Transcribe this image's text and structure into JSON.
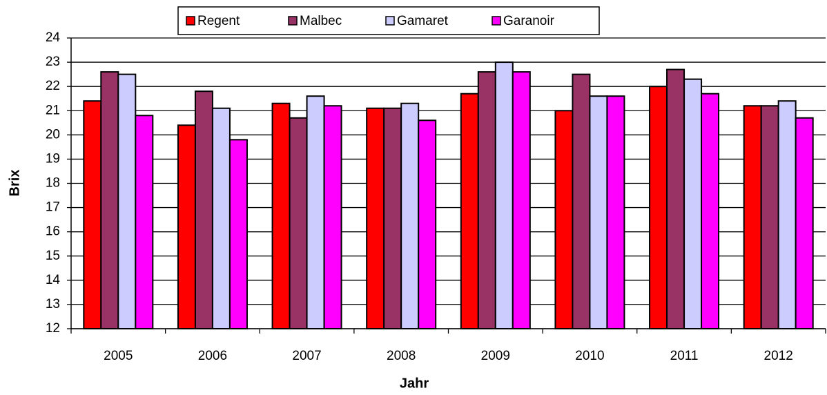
{
  "chart_data": {
    "type": "bar",
    "x_label": "Jahr",
    "y_label": "Brix",
    "categories": [
      "2005",
      "2006",
      "2007",
      "2008",
      "2009",
      "2010",
      "2011",
      "2012"
    ],
    "series": [
      {
        "name": "Regent",
        "color": "#ff0000",
        "values": [
          21.4,
          20.4,
          21.3,
          21.1,
          21.7,
          21.0,
          22.0,
          21.2
        ]
      },
      {
        "name": "Malbec",
        "color": "#993366",
        "values": [
          22.6,
          21.8,
          20.7,
          21.1,
          22.6,
          22.5,
          22.7,
          21.2
        ]
      },
      {
        "name": "Gamaret",
        "color": "#ccccff",
        "values": [
          22.5,
          21.1,
          21.6,
          21.3,
          23.0,
          21.6,
          22.3,
          21.4
        ]
      },
      {
        "name": "Garanoir",
        "color": "#ff00ff",
        "values": [
          20.8,
          19.8,
          21.2,
          20.6,
          22.6,
          21.6,
          21.7,
          20.7
        ]
      }
    ],
    "ylim": [
      12,
      24
    ],
    "yticks": [
      12,
      13,
      14,
      15,
      16,
      17,
      18,
      19,
      20,
      21,
      22,
      23,
      24
    ],
    "grid": true,
    "legend": "top"
  }
}
